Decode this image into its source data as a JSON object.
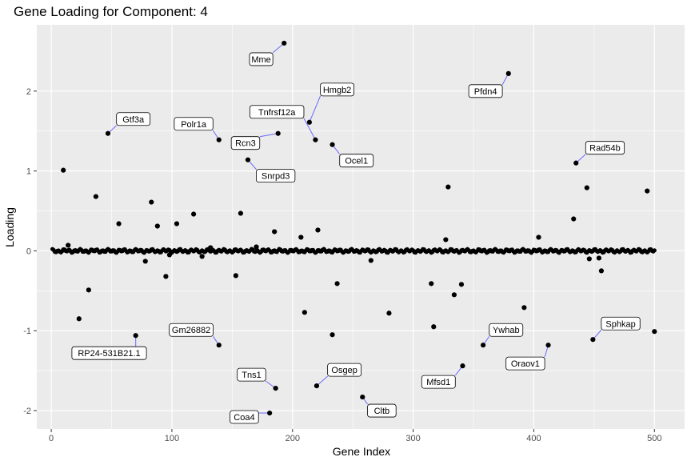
{
  "chart_data": {
    "type": "scatter",
    "title": "Gene Loading for Component: 4",
    "xlabel": "Gene Index",
    "ylabel": "Loading",
    "xlim": [
      -12,
      525
    ],
    "ylim": [
      -2.23,
      2.83
    ],
    "x_ticks": [
      0,
      100,
      200,
      300,
      400,
      500
    ],
    "x_tick_labels": [
      "0",
      "100",
      "200",
      "300",
      "400",
      "500"
    ],
    "y_ticks": [
      -2,
      -1,
      0,
      1,
      2
    ],
    "y_tick_labels": [
      "-2",
      "-1",
      "0",
      "1",
      "2"
    ],
    "grid": true,
    "background": "#ebebeb",
    "point_color": "#000000",
    "connector_color": "#6a6aff",
    "baseline_points": {
      "x_start": 1,
      "x_end": 500,
      "amplitude": 0.015
    },
    "points": [
      {
        "x": 10,
        "y": 1.01
      },
      {
        "x": 14,
        "y": 0.07
      },
      {
        "x": 23,
        "y": -0.85
      },
      {
        "x": 31,
        "y": -0.49
      },
      {
        "x": 37,
        "y": 0.68
      },
      {
        "x": 47,
        "y": 1.47,
        "label": "Gtf3a"
      },
      {
        "x": 56,
        "y": 0.34
      },
      {
        "x": 70,
        "y": -1.06,
        "label": "RP24-531B21.1"
      },
      {
        "x": 78,
        "y": -0.13
      },
      {
        "x": 83,
        "y": 0.61
      },
      {
        "x": 88,
        "y": 0.31
      },
      {
        "x": 95,
        "y": -0.32
      },
      {
        "x": 98,
        "y": -0.05
      },
      {
        "x": 104,
        "y": 0.34
      },
      {
        "x": 118,
        "y": 0.46
      },
      {
        "x": 125,
        "y": -0.07
      },
      {
        "x": 132,
        "y": 0.04
      },
      {
        "x": 139,
        "y": 1.39,
        "label": "Polr1a"
      },
      {
        "x": 139,
        "y": -1.18,
        "label": "Gm26882"
      },
      {
        "x": 153,
        "y": -0.31
      },
      {
        "x": 157,
        "y": 0.47
      },
      {
        "x": 163,
        "y": 1.14,
        "label": "Snrpd3"
      },
      {
        "x": 170,
        "y": 0.05
      },
      {
        "x": 181,
        "y": -2.03,
        "label": "Coa4"
      },
      {
        "x": 185,
        "y": 0.24
      },
      {
        "x": 186,
        "y": -1.72,
        "label": "Tns1"
      },
      {
        "x": 188,
        "y": 1.47,
        "label": "Rcn3"
      },
      {
        "x": 193,
        "y": 2.6,
        "label": "Mme"
      },
      {
        "x": 207,
        "y": 0.17
      },
      {
        "x": 210,
        "y": -0.77
      },
      {
        "x": 214,
        "y": 1.61,
        "label": "Hmgb2"
      },
      {
        "x": 219,
        "y": 1.39,
        "label": "Tnfrsf12a"
      },
      {
        "x": 220,
        "y": -1.69,
        "label": "Osgep"
      },
      {
        "x": 221,
        "y": 0.26
      },
      {
        "x": 233,
        "y": 1.33,
        "label": "Ocel1"
      },
      {
        "x": 233,
        "y": -1.05
      },
      {
        "x": 237,
        "y": -0.41
      },
      {
        "x": 258,
        "y": -1.83,
        "label": "Cltb"
      },
      {
        "x": 265,
        "y": -0.12
      },
      {
        "x": 280,
        "y": -0.78
      },
      {
        "x": 315,
        "y": -0.41
      },
      {
        "x": 317,
        "y": -0.95
      },
      {
        "x": 327,
        "y": 0.14
      },
      {
        "x": 329,
        "y": 0.8
      },
      {
        "x": 334,
        "y": -0.55
      },
      {
        "x": 340,
        "y": -0.42
      },
      {
        "x": 341,
        "y": -1.44,
        "label": "Mfsd1"
      },
      {
        "x": 358,
        "y": -1.18,
        "label": "Ywhab"
      },
      {
        "x": 379,
        "y": 2.22,
        "label": "Pfdn4"
      },
      {
        "x": 392,
        "y": -0.71
      },
      {
        "x": 404,
        "y": 0.17
      },
      {
        "x": 412,
        "y": -1.18,
        "label": "Oraov1"
      },
      {
        "x": 433,
        "y": 0.4
      },
      {
        "x": 435,
        "y": 1.1,
        "label": "Rad54b"
      },
      {
        "x": 444,
        "y": 0.79
      },
      {
        "x": 446,
        "y": -0.1
      },
      {
        "x": 449,
        "y": -1.11,
        "label": "Sphkap"
      },
      {
        "x": 454,
        "y": -0.09
      },
      {
        "x": 456,
        "y": -0.25
      },
      {
        "x": 494,
        "y": 0.75
      },
      {
        "x": 500,
        "y": -1.01
      }
    ],
    "label_boxes": [
      {
        "text": "Mme",
        "x": 174,
        "y": 2.4
      },
      {
        "text": "Pfdn4",
        "x": 360,
        "y": 2.0
      },
      {
        "text": "Hmgb2",
        "x": 237,
        "y": 2.02
      },
      {
        "text": "Tnfrsf12a",
        "x": 187,
        "y": 1.74
      },
      {
        "text": "Gtf3a",
        "x": 68,
        "y": 1.65
      },
      {
        "text": "Polr1a",
        "x": 118,
        "y": 1.59
      },
      {
        "text": "Rcn3",
        "x": 161,
        "y": 1.35
      },
      {
        "text": "Ocel1",
        "x": 253,
        "y": 1.13
      },
      {
        "text": "Rad54b",
        "x": 459,
        "y": 1.29
      },
      {
        "text": "Snrpd3",
        "x": 186,
        "y": 0.94
      },
      {
        "text": "Gm26882",
        "x": 116,
        "y": -0.99
      },
      {
        "text": "RP24-531B21.1",
        "x": 48,
        "y": -1.28
      },
      {
        "text": "Ywhab",
        "x": 377,
        "y": -0.99
      },
      {
        "text": "Sphkap",
        "x": 472,
        "y": -0.91
      },
      {
        "text": "Oraov1",
        "x": 393,
        "y": -1.41
      },
      {
        "text": "Mfsd1",
        "x": 321,
        "y": -1.64
      },
      {
        "text": "Tns1",
        "x": 166,
        "y": -1.55
      },
      {
        "text": "Osgep",
        "x": 243,
        "y": -1.49
      },
      {
        "text": "Cltb",
        "x": 274,
        "y": -2.0
      },
      {
        "text": "Coa4",
        "x": 160,
        "y": -2.08
      }
    ]
  }
}
